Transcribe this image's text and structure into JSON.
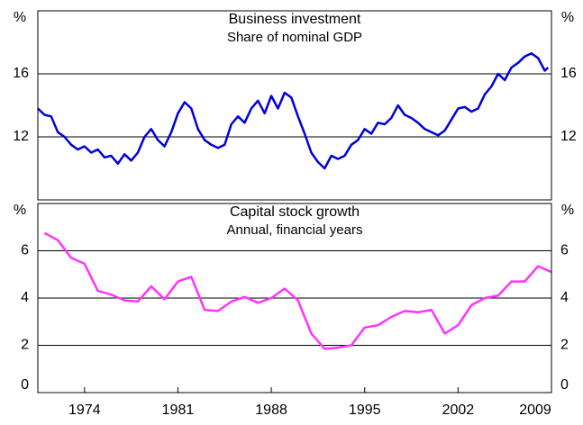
{
  "chart_data": [
    {
      "type": "line",
      "title": "Business investment",
      "subtitle": "Share of nominal GDP",
      "y_label": "%",
      "color": "#0000dd",
      "x": [
        1970.5,
        1971,
        1971.5,
        1972,
        1972.5,
        1973,
        1973.5,
        1974,
        1974.5,
        1975,
        1975.5,
        1976,
        1976.5,
        1977,
        1977.5,
        1978,
        1978.5,
        1979,
        1979.5,
        1980,
        1980.5,
        1981,
        1981.5,
        1982,
        1982.5,
        1983,
        1983.5,
        1984,
        1984.5,
        1985,
        1985.5,
        1986,
        1986.5,
        1987,
        1987.5,
        1988,
        1988.5,
        1989,
        1989.5,
        1990,
        1990.5,
        1991,
        1991.5,
        1992,
        1992.5,
        1993,
        1993.5,
        1994,
        1994.5,
        1995,
        1995.5,
        1996,
        1996.5,
        1997,
        1997.5,
        1998,
        1998.5,
        1999,
        1999.5,
        2000,
        2000.5,
        2001,
        2001.5,
        2002,
        2002.5,
        2003,
        2003.5,
        2004,
        2004.5,
        2005,
        2005.5,
        2006,
        2006.5,
        2007,
        2007.5,
        2008,
        2008.5,
        2008.75
      ],
      "values": [
        13.8,
        13.4,
        13.3,
        12.3,
        12.0,
        11.5,
        11.2,
        11.4,
        11.0,
        11.2,
        10.7,
        10.8,
        10.3,
        10.9,
        10.5,
        11.0,
        12.0,
        12.5,
        11.8,
        11.4,
        12.3,
        13.5,
        14.2,
        13.8,
        12.5,
        11.8,
        11.5,
        11.3,
        11.5,
        12.8,
        13.3,
        12.9,
        13.8,
        14.3,
        13.5,
        14.6,
        13.8,
        14.8,
        14.5,
        13.3,
        12.2,
        11.0,
        10.4,
        10.0,
        10.8,
        10.6,
        10.8,
        11.5,
        11.8,
        12.5,
        12.2,
        12.9,
        12.8,
        13.2,
        14.0,
        13.4,
        13.2,
        12.9,
        12.5,
        12.3,
        12.1,
        12.4,
        13.1,
        13.8,
        13.9,
        13.6,
        13.8,
        14.7,
        15.2,
        16.0,
        15.6,
        16.4,
        16.7,
        17.1,
        17.3,
        17.0,
        16.2,
        16.4
      ],
      "xlim": [
        1970.5,
        2009
      ],
      "ylim": [
        8,
        20
      ],
      "yticks": [
        12,
        16
      ],
      "grid": true
    },
    {
      "type": "line",
      "title": "Capital stock growth",
      "subtitle": "Annual, financial years",
      "y_label": "%",
      "color": "#ff33ff",
      "x": [
        1971,
        1972,
        1973,
        1974,
        1975,
        1976,
        1977,
        1978,
        1979,
        1980,
        1981,
        1982,
        1983,
        1984,
        1985,
        1986,
        1987,
        1988,
        1989,
        1990,
        1991,
        1992,
        1993,
        1994,
        1995,
        1996,
        1997,
        1998,
        1999,
        2000,
        2001,
        2002,
        2003,
        2004,
        2005,
        2006,
        2007,
        2008,
        2009
      ],
      "values": [
        6.75,
        6.45,
        5.7,
        5.45,
        4.3,
        4.15,
        3.9,
        3.85,
        4.5,
        3.95,
        4.7,
        4.9,
        3.5,
        3.45,
        3.85,
        4.05,
        3.8,
        4.0,
        4.4,
        3.9,
        2.5,
        1.85,
        1.9,
        2.0,
        2.75,
        2.85,
        3.2,
        3.45,
        3.4,
        3.5,
        2.5,
        2.85,
        3.7,
        4.0,
        4.1,
        4.7,
        4.7,
        5.35,
        5.1
      ],
      "xlim": [
        1970.5,
        2009
      ],
      "ylim": [
        0,
        8
      ],
      "yticks": [
        0,
        2,
        4,
        6
      ],
      "xticks": [
        1974,
        1981,
        1988,
        1995,
        2002,
        2009
      ],
      "grid": true
    }
  ]
}
